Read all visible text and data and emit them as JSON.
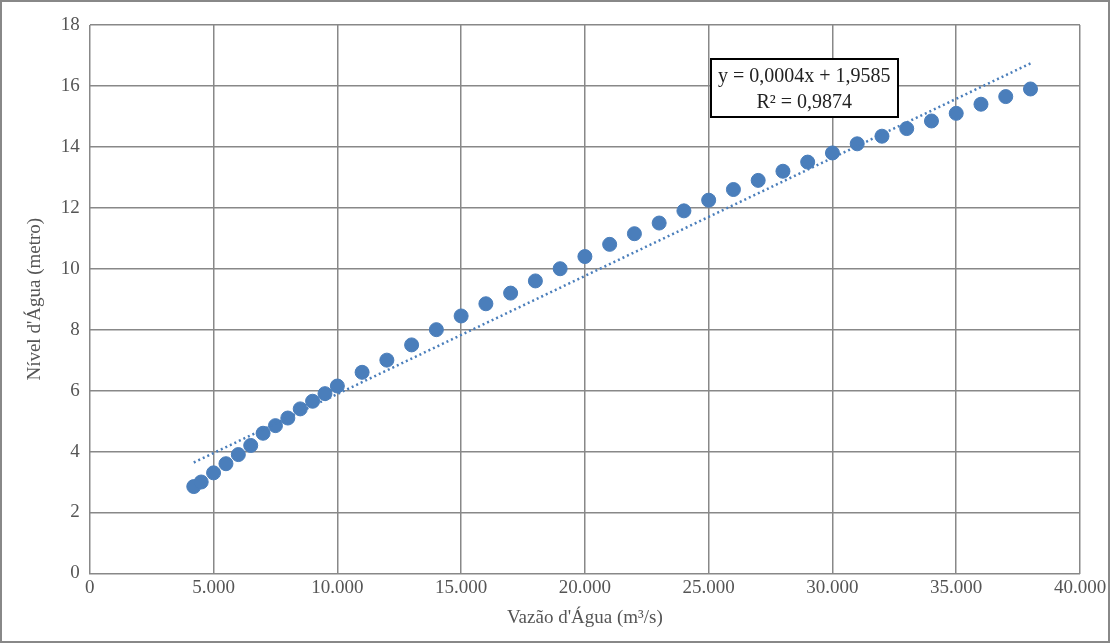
{
  "chart_data": {
    "type": "scatter",
    "xlabel": "Vazão d'Água (m³/s)",
    "ylabel": "Nível d'Água (metro)",
    "xlim": [
      0,
      40000
    ],
    "ylim": [
      0,
      18
    ],
    "xticks": [
      0,
      {
        "value": 5000,
        "label": "5.000"
      },
      {
        "value": 10000,
        "label": "10.000"
      },
      {
        "value": 15000,
        "label": "15.000"
      },
      {
        "value": 20000,
        "label": "20.000"
      },
      {
        "value": 25000,
        "label": "25.000"
      },
      {
        "value": 30000,
        "label": "30.000"
      },
      {
        "value": 35000,
        "label": "35.000"
      },
      {
        "value": 40000,
        "label": "40.000"
      }
    ],
    "yticks": [
      0,
      2,
      4,
      6,
      8,
      10,
      12,
      14,
      16,
      18
    ],
    "grid": true,
    "legend": false,
    "marker": "circle",
    "annotations": [
      "y = 0,0004x + 1,9585",
      "R² = 0,9874"
    ],
    "series": [
      {
        "type": "scatter",
        "color": "#4a7ebb",
        "x": [
          4200,
          4500,
          5000,
          5500,
          6000,
          6500,
          7000,
          7500,
          8000,
          8500,
          9000,
          9500,
          10000,
          11000,
          12000,
          13000,
          14000,
          15000,
          16000,
          17000,
          18000,
          19000,
          20000,
          21000,
          22000,
          23000,
          24000,
          25000,
          26000,
          27000,
          28000,
          29000,
          30000,
          31000,
          32000,
          33000,
          34000,
          35000,
          36000,
          37000,
          38000
        ],
        "values": [
          2.85,
          3.0,
          3.3,
          3.6,
          3.9,
          4.2,
          4.6,
          4.85,
          5.1,
          5.4,
          5.65,
          5.9,
          6.15,
          6.6,
          7.0,
          7.5,
          8.0,
          8.45,
          8.85,
          9.2,
          9.6,
          10.0,
          10.4,
          10.8,
          11.15,
          11.5,
          11.9,
          12.25,
          12.6,
          12.9,
          13.2,
          13.5,
          13.8,
          14.1,
          14.35,
          14.6,
          14.85,
          15.1,
          15.4,
          15.65,
          15.9
        ]
      },
      {
        "type": "line",
        "color": "#4a7ebb",
        "line_style": "dotted",
        "marker": "none",
        "x": [
          4200,
          38000
        ],
        "values": [
          3.64,
          16.74
        ]
      }
    ]
  }
}
